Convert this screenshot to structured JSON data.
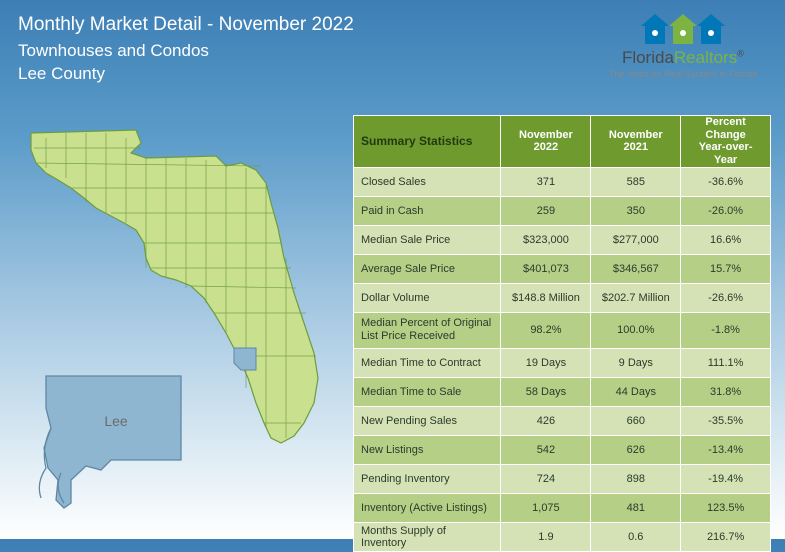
{
  "header": {
    "title": "Monthly Market Detail - November 2022",
    "subtitle": "Townhouses and Condos",
    "county": "Lee County"
  },
  "logo": {
    "brand1": "Florida",
    "brand2": "Realtors",
    "trademark": "®",
    "tagline": "The Voice for Real Estate® in Florida"
  },
  "map": {
    "county_label": "Lee",
    "state_fill": "#c9e08f",
    "state_stroke": "#6d9c3f",
    "highlight_fill": "#8fb6d0",
    "highlight_stroke": "#5f87a5",
    "inset_fill": "#8fb6d0",
    "inset_text": "#6b6b6b"
  },
  "table": {
    "header_bg": "#6f9a2e",
    "row_alt1_bg": "#d4e2b5",
    "row_alt2_bg": "#b6cf87",
    "headers": {
      "col1": "Summary Statistics",
      "col2": "November 2022",
      "col3": "November 2021",
      "col4_line1": "Percent Change",
      "col4_line2": "Year-over-Year"
    },
    "rows": [
      {
        "label": "Closed Sales",
        "v1": "371",
        "v2": "585",
        "pct": "-36.6%"
      },
      {
        "label": "Paid in Cash",
        "v1": "259",
        "v2": "350",
        "pct": "-26.0%"
      },
      {
        "label": "Median Sale Price",
        "v1": "$323,000",
        "v2": "$277,000",
        "pct": "16.6%"
      },
      {
        "label": "Average Sale Price",
        "v1": "$401,073",
        "v2": "$346,567",
        "pct": "15.7%"
      },
      {
        "label": "Dollar Volume",
        "v1": "$148.8 Million",
        "v2": "$202.7 Million",
        "pct": "-26.6%"
      },
      {
        "label": "Median Percent of Original List Price Received",
        "v1": "98.2%",
        "v2": "100.0%",
        "pct": "-1.8%",
        "twoLine": true
      },
      {
        "label": "Median Time to Contract",
        "v1": "19 Days",
        "v2": "9 Days",
        "pct": "111.1%"
      },
      {
        "label": "Median Time to Sale",
        "v1": "58 Days",
        "v2": "44 Days",
        "pct": "31.8%"
      },
      {
        "label": "New Pending Sales",
        "v1": "426",
        "v2": "660",
        "pct": "-35.5%"
      },
      {
        "label": "New Listings",
        "v1": "542",
        "v2": "626",
        "pct": "-13.4%"
      },
      {
        "label": "Pending Inventory",
        "v1": "724",
        "v2": "898",
        "pct": "-19.4%"
      },
      {
        "label": "Inventory (Active Listings)",
        "v1": "1,075",
        "v2": "481",
        "pct": "123.5%"
      },
      {
        "label": "Months Supply of Inventory",
        "v1": "1.9",
        "v2": "0.6",
        "pct": "216.7%"
      }
    ]
  }
}
